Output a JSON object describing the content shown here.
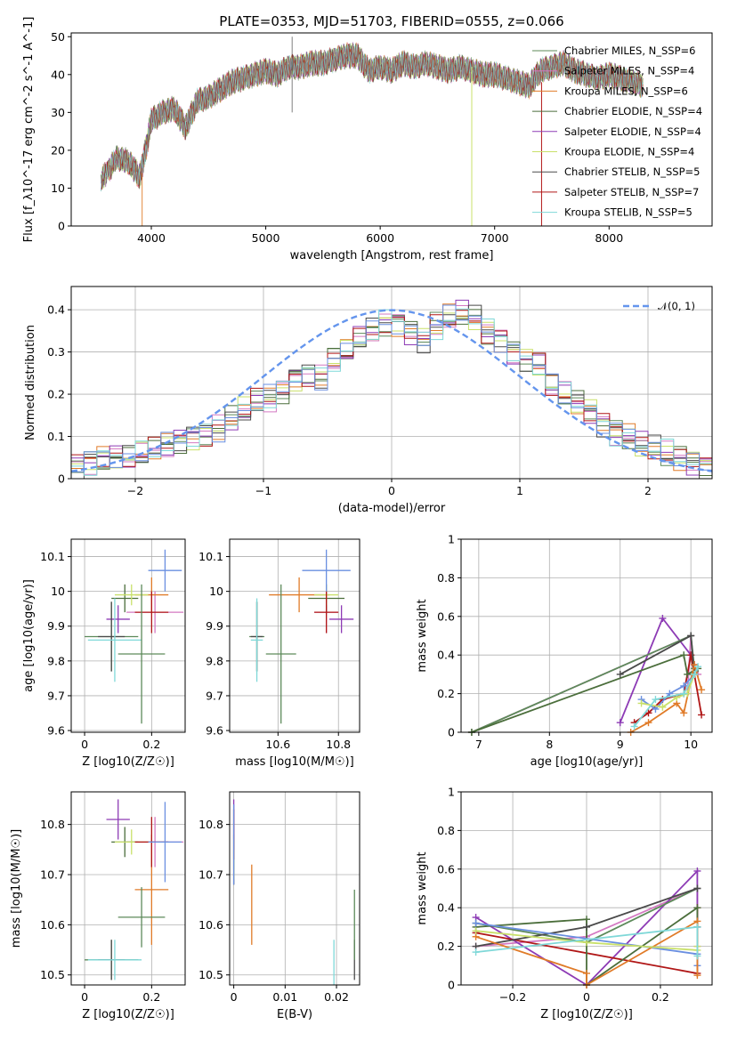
{
  "title": "PLATE=0353, MJD=51703, FIBERID=0555, z=0.066",
  "colors": [
    "#5d8a5a",
    "#d479c2",
    "#e07b28",
    "#4b6e3b",
    "#8d3bb5",
    "#c9e06a",
    "#4a4a4a",
    "#b01616",
    "#7fd8d8",
    "#6a8fe0",
    "#6495ed"
  ],
  "chart_data": [
    {
      "id": "spectrum",
      "type": "line",
      "xlabel": "wavelength [Angstrom, rest frame]",
      "ylabel": "Flux [f_λ10^-17 erg cm^-2 s^-1 A^-1]",
      "xlim": [
        3300,
        8900
      ],
      "ylim": [
        0,
        51
      ],
      "xticks": [
        4000,
        5000,
        6000,
        7000,
        8000
      ],
      "yticks": [
        0,
        10,
        20,
        30,
        40,
        50
      ],
      "grid": false,
      "legend": "top-right",
      "legend_labels": [
        "Chabrier MILES, N_SSP=6",
        "Salpeter MILES, N_SSP=4",
        "Kroupa MILES, N_SSP=6",
        "Chabrier ELODIE, N_SSP=4",
        "Salpeter ELODIE, N_SSP=4",
        "Kroupa ELODIE, N_SSP=4",
        "Chabrier STELIB, N_SSP=5",
        "Salpeter STELIB, N_SSP=7",
        "Kroupa STELIB, N_SSP=5"
      ],
      "x": [
        3560,
        3700,
        3800,
        3900,
        3950,
        4000,
        4100,
        4200,
        4300,
        4400,
        4500,
        4600,
        4700,
        4800,
        4900,
        5000,
        5100,
        5200,
        5300,
        5400,
        5500,
        5600,
        5700,
        5800,
        5900,
        6000,
        6100,
        6200,
        6300,
        6400,
        6500,
        6600,
        6700,
        6800,
        6900,
        7000,
        7100,
        7200,
        7300,
        7400,
        7500,
        7600,
        7700,
        7800,
        7900,
        8000,
        8100,
        8200,
        8300
      ],
      "y": [
        12,
        18,
        17,
        13,
        20,
        28,
        30,
        31,
        26,
        33,
        34,
        36,
        38,
        39,
        40,
        41,
        40,
        42,
        42,
        43,
        43,
        44,
        45,
        45,
        41,
        42,
        41,
        43,
        42,
        43,
        42,
        41,
        42,
        41,
        40,
        40,
        39,
        38,
        37,
        41,
        42,
        43,
        41,
        40,
        39,
        40,
        39,
        38,
        37
      ]
    },
    {
      "id": "residuals",
      "type": "histogram",
      "xlabel": "(data-model)/error",
      "ylabel": "Normed distribution",
      "xlim": [
        -2.5,
        2.5
      ],
      "ylim": [
        0,
        0.455
      ],
      "xticks": [
        -2,
        -1,
        0,
        1,
        2
      ],
      "yticks": [
        0.0,
        0.1,
        0.2,
        0.3,
        0.4
      ],
      "grid": true,
      "legend": "top-right",
      "reference_label": "𝒩(0, 1)",
      "bin_width": 0.1,
      "bin_start": -2.5,
      "counts": [
        0.03,
        0.04,
        0.05,
        0.05,
        0.05,
        0.06,
        0.07,
        0.08,
        0.09,
        0.1,
        0.11,
        0.12,
        0.14,
        0.16,
        0.18,
        0.19,
        0.21,
        0.24,
        0.25,
        0.24,
        0.28,
        0.3,
        0.33,
        0.35,
        0.37,
        0.37,
        0.35,
        0.33,
        0.36,
        0.38,
        0.39,
        0.38,
        0.35,
        0.33,
        0.3,
        0.28,
        0.27,
        0.22,
        0.2,
        0.18,
        0.16,
        0.13,
        0.11,
        0.1,
        0.08,
        0.07,
        0.06,
        0.05,
        0.04,
        0.03
      ]
    },
    {
      "id": "age-vs-Z",
      "type": "scatter",
      "xlabel": "Z [log10(Z/Z☉)]",
      "ylabel": "age [log10(age/yr)]",
      "xlim": [
        -0.04,
        0.3
      ],
      "ylim": [
        9.595,
        10.15
      ],
      "xticks": [
        0.0,
        0.2
      ],
      "yticks": [
        9.6,
        9.7,
        9.8,
        9.9,
        10.0,
        10.1
      ],
      "points": [
        {
          "x": 0.08,
          "y": 9.87,
          "xe": 0.08,
          "ye": 0.1
        },
        {
          "x": 0.21,
          "y": 9.94,
          "xe": 0.085,
          "ye": 0.06
        },
        {
          "x": 0.2,
          "y": 9.99,
          "xe": 0.05,
          "ye": 0.05
        },
        {
          "x": 0.12,
          "y": 9.98,
          "xe": 0.04,
          "ye": 0.04
        },
        {
          "x": 0.1,
          "y": 9.92,
          "xe": 0.035,
          "ye": 0.04
        },
        {
          "x": 0.14,
          "y": 9.99,
          "xe": 0.05,
          "ye": 0.03
        },
        {
          "x": 0.08,
          "y": 9.87,
          "xe": 0.04,
          "ye": 0.1
        },
        {
          "x": 0.2,
          "y": 9.94,
          "xe": 0.05,
          "ye": 0.06
        },
        {
          "x": 0.09,
          "y": 9.86,
          "xe": 0.08,
          "ye": 0.12
        },
        {
          "x": 0.24,
          "y": 10.06,
          "xe": 0.05,
          "ye": 0.06
        },
        {
          "x": 0.17,
          "y": 9.82,
          "xe": 0.07,
          "ye": 0.2
        }
      ]
    },
    {
      "id": "age-vs-mass",
      "type": "scatter",
      "xlabel": "mass [log10(M/M☉)]",
      "ylabel": "",
      "xlim": [
        10.44,
        10.87
      ],
      "ylim": [
        9.595,
        10.15
      ],
      "xticks": [
        10.6,
        10.8
      ],
      "yticks": [
        9.6,
        9.7,
        9.8,
        9.9,
        10.0,
        10.1
      ],
      "points": [
        {
          "x": 10.53,
          "y": 9.87,
          "xe": 0.025,
          "ye": 0.1
        },
        {
          "x": 10.76,
          "y": 9.94,
          "xe": 0.04,
          "ye": 0.06
        },
        {
          "x": 10.67,
          "y": 9.99,
          "xe": 0.1,
          "ye": 0.05
        },
        {
          "x": 10.76,
          "y": 9.98,
          "xe": 0.06,
          "ye": 0.04
        },
        {
          "x": 10.81,
          "y": 9.92,
          "xe": 0.04,
          "ye": 0.04
        },
        {
          "x": 10.76,
          "y": 9.99,
          "xe": 0.04,
          "ye": 0.03
        },
        {
          "x": 10.53,
          "y": 9.87,
          "xe": 0.02,
          "ye": 0.1
        },
        {
          "x": 10.76,
          "y": 9.94,
          "xe": 0.04,
          "ye": 0.06
        },
        {
          "x": 10.53,
          "y": 9.86,
          "xe": 0.02,
          "ye": 0.12
        },
        {
          "x": 10.76,
          "y": 10.06,
          "xe": 0.08,
          "ye": 0.06
        },
        {
          "x": 10.61,
          "y": 9.82,
          "xe": 0.05,
          "ye": 0.2
        }
      ]
    },
    {
      "id": "mass-weight-vs-age",
      "type": "line",
      "xlabel": "age [log10(age/yr)]",
      "ylabel": "mass weight",
      "xlim": [
        6.75,
        10.3
      ],
      "ylim": [
        0,
        1
      ],
      "xticks": [
        7,
        8,
        9,
        10
      ],
      "yticks": [
        0.0,
        0.2,
        0.4,
        0.6,
        0.8,
        1.0
      ],
      "series": [
        {
          "x": [
            6.9,
            10.0,
            9.95,
            10.05,
            10.1
          ],
          "y": [
            0.0,
            0.5,
            0.2,
            0.33,
            0.3
          ]
        },
        {
          "x": [
            9.0,
            9.6,
            10.0,
            10.05
          ],
          "y": [
            0.05,
            0.59,
            0.4,
            0.35
          ]
        },
        {
          "x": [
            9.2,
            9.4,
            9.6,
            9.9,
            10.0,
            10.15
          ],
          "y": [
            0.05,
            0.1,
            0.17,
            0.2,
            0.4,
            0.09
          ]
        },
        {
          "x": [
            6.9,
            10.0,
            10.05
          ],
          "y": [
            0.0,
            0.5,
            0.33
          ]
        },
        {
          "x": [
            6.9,
            9.9,
            9.95,
            10.1
          ],
          "y": [
            0.0,
            0.4,
            0.3,
            0.33
          ]
        },
        {
          "x": [
            9.0,
            10.0,
            10.05
          ],
          "y": [
            0.3,
            0.5,
            0.3
          ]
        },
        {
          "x": [
            9.3,
            9.5,
            9.7,
            9.9,
            10.05
          ],
          "y": [
            0.17,
            0.12,
            0.2,
            0.24,
            0.3
          ]
        },
        {
          "x": [
            9.15,
            9.4,
            9.8,
            9.9,
            10.05,
            10.15
          ],
          "y": [
            0.0,
            0.05,
            0.15,
            0.1,
            0.35,
            0.22
          ]
        },
        {
          "x": [
            9.3,
            9.6,
            9.8,
            9.95,
            10.05
          ],
          "y": [
            0.15,
            0.13,
            0.18,
            0.2,
            0.3
          ]
        },
        {
          "x": [
            9.2,
            9.5,
            9.9,
            10.05,
            10.1
          ],
          "y": [
            0.03,
            0.17,
            0.2,
            0.3,
            0.34
          ]
        }
      ]
    },
    {
      "id": "mass-vs-Z",
      "type": "scatter",
      "xlabel": "Z [log10(Z/Z☉)]",
      "ylabel": "mass [log10(M/M☉)]",
      "xlim": [
        -0.04,
        0.3
      ],
      "ylim": [
        10.48,
        10.865
      ],
      "xticks": [
        0.0,
        0.2
      ],
      "yticks": [
        10.5,
        10.6,
        10.7,
        10.8
      ],
      "points": [
        {
          "x": 0.08,
          "y": 10.53,
          "xe": 0.08,
          "ye": 0.04
        },
        {
          "x": 0.21,
          "y": 10.765,
          "xe": 0.085,
          "ye": 0.05
        },
        {
          "x": 0.2,
          "y": 10.67,
          "xe": 0.05,
          "ye": 0.11
        },
        {
          "x": 0.12,
          "y": 10.765,
          "xe": 0.04,
          "ye": 0.03
        },
        {
          "x": 0.1,
          "y": 10.81,
          "xe": 0.035,
          "ye": 0.04
        },
        {
          "x": 0.14,
          "y": 10.765,
          "xe": 0.05,
          "ye": 0.025
        },
        {
          "x": 0.08,
          "y": 10.53,
          "xe": 0.04,
          "ye": 0.04
        },
        {
          "x": 0.2,
          "y": 10.765,
          "xe": 0.05,
          "ye": 0.05
        },
        {
          "x": 0.09,
          "y": 10.53,
          "xe": 0.08,
          "ye": 0.04
        },
        {
          "x": 0.24,
          "y": 10.765,
          "xe": 0.05,
          "ye": 0.08
        },
        {
          "x": 0.17,
          "y": 10.615,
          "xe": 0.07,
          "ye": 0.06
        }
      ]
    },
    {
      "id": "mass-vs-EBV",
      "type": "scatter",
      "xlabel": "E(B-V)",
      "ylabel": "",
      "xlim": [
        -0.0008,
        0.0245
      ],
      "ylim": [
        10.48,
        10.865
      ],
      "xticks": [
        0.0,
        0.01,
        0.02
      ],
      "yticks": [
        10.5,
        10.6,
        10.7,
        10.8
      ],
      "points": [
        {
          "x": 0.0,
          "y": 10.77,
          "xe": 0,
          "ye": 0.06
        },
        {
          "x": 0.0,
          "y": 10.76,
          "xe": 0,
          "ye": 0.08
        },
        {
          "x": 0.0035,
          "y": 10.64,
          "xe": 0,
          "ye": 0.08
        },
        {
          "x": 0.0,
          "y": 10.73,
          "xe": 0,
          "ye": 0.05
        },
        {
          "x": 0.0,
          "y": 10.81,
          "xe": 0,
          "ye": 0.04
        },
        {
          "x": 0.0,
          "y": 10.72,
          "xe": 0,
          "ye": 0.03
        },
        {
          "x": 0.0235,
          "y": 10.53,
          "xe": 0,
          "ye": 0.04
        },
        {
          "x": 0.0,
          "y": 10.78,
          "xe": 0,
          "ye": 0.05
        },
        {
          "x": 0.0195,
          "y": 10.5,
          "xe": 0,
          "ye": 0.07
        },
        {
          "x": 0.0,
          "y": 10.76,
          "xe": 0,
          "ye": 0.08
        },
        {
          "x": 0.0235,
          "y": 10.6,
          "xe": 0,
          "ye": 0.07
        }
      ]
    },
    {
      "id": "mass-weight-vs-Z",
      "type": "line",
      "xlabel": "Z [log10(Z/Z☉)]",
      "ylabel": "mass weight",
      "xlim": [
        -0.34,
        0.34
      ],
      "ylim": [
        0,
        1
      ],
      "xticks": [
        -0.2,
        0.0,
        0.2
      ],
      "yticks": [
        0.0,
        0.2,
        0.4,
        0.6,
        0.8,
        1.0
      ],
      "series": [
        {
          "x": [
            -0.3,
            0.0,
            0.3,
            0.3
          ],
          "y": [
            0.2,
            0.25,
            0.5,
            0.2
          ]
        },
        {
          "x": [
            -0.3,
            0.0,
            0.3,
            0.3
          ],
          "y": [
            0.35,
            0.0,
            0.59,
            0.3
          ]
        },
        {
          "x": [
            -0.3,
            0.3,
            0.3
          ],
          "y": [
            0.27,
            0.06,
            0.4
          ]
        },
        {
          "x": [
            -0.3,
            0.0,
            0.3
          ],
          "y": [
            0.32,
            0.22,
            0.5
          ]
        },
        {
          "x": [
            -0.3,
            0.0,
            0.0,
            0.3,
            0.3
          ],
          "y": [
            0.3,
            0.34,
            0.0,
            0.4,
            0.3
          ]
        },
        {
          "x": [
            -0.3,
            0.0,
            0.3
          ],
          "y": [
            0.2,
            0.3,
            0.5
          ]
        },
        {
          "x": [
            -0.3,
            0.3,
            0.3
          ],
          "y": [
            0.32,
            0.16,
            0.1
          ]
        },
        {
          "x": [
            -0.3,
            0.0,
            0.0,
            0.3,
            0.3
          ],
          "y": [
            0.25,
            0.06,
            0.0,
            0.33,
            0.05
          ]
        },
        {
          "x": [
            -0.3,
            0.0,
            0.3,
            0.3
          ],
          "y": [
            0.28,
            0.22,
            0.18,
            0.2
          ]
        },
        {
          "x": [
            -0.3,
            0.3,
            0.3
          ],
          "y": [
            0.17,
            0.3,
            0.15
          ]
        }
      ]
    }
  ]
}
